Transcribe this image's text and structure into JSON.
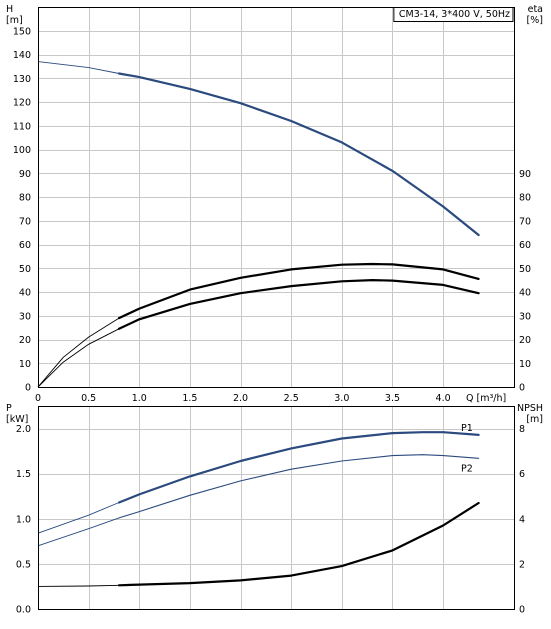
{
  "chart_data": [
    {
      "type": "line",
      "title": "CM3-14, 3*400 V, 50Hz",
      "xlabel": "Q [m³/h]",
      "ylabel_left": [
        "H",
        "[m]"
      ],
      "ylabel_right": [
        "eta",
        "[%]"
      ],
      "xlim": [
        0,
        4.7
      ],
      "ylim_left": [
        0,
        160
      ],
      "ylim_right": [
        0,
        160
      ],
      "grid": true,
      "x_ticks": [
        "0",
        "0.5",
        "1.0",
        "1.5",
        "2.0",
        "2.5",
        "3.0",
        "3.5",
        "4.0"
      ],
      "x_tick_values": [
        0,
        0.5,
        1,
        1.5,
        2,
        2.5,
        3,
        3.5,
        4
      ],
      "y_ticks_left": [
        "0",
        "10",
        "20",
        "30",
        "40",
        "50",
        "60",
        "70",
        "80",
        "90",
        "100",
        "110",
        "120",
        "130",
        "140",
        "150"
      ],
      "y_tick_values_left": [
        0,
        10,
        20,
        30,
        40,
        50,
        60,
        70,
        80,
        90,
        100,
        110,
        120,
        130,
        140,
        150
      ],
      "y_ticks_right": [
        "0",
        "10",
        "20",
        "30",
        "40",
        "50",
        "60",
        "70",
        "80",
        "90"
      ],
      "y_tick_values_right": [
        0,
        10,
        20,
        30,
        40,
        50,
        60,
        70,
        80,
        90
      ],
      "series": [
        {
          "axis": "left",
          "color": "#2b4a7e",
          "x": [
            0,
            0.5,
            0.8,
            1.0,
            1.5,
            2.0,
            2.5,
            3.0,
            3.5,
            4.0,
            4.35
          ],
          "y": [
            137,
            134.5,
            132,
            130.5,
            125.5,
            119.5,
            112,
            103,
            91,
            76,
            64
          ],
          "bold_from": 0.8
        },
        {
          "axis": "right",
          "color": "#000000",
          "x": [
            0,
            0.25,
            0.5,
            0.8,
            1.0,
            1.5,
            2.0,
            2.5,
            3.0,
            3.3,
            3.5,
            4.0,
            4.35
          ],
          "y": [
            0,
            12.5,
            21,
            29,
            33,
            41,
            46,
            49.5,
            51.5,
            51.8,
            51.6,
            49.5,
            45.5
          ],
          "bold_from": 0.8
        },
        {
          "axis": "right",
          "color": "#000000",
          "x": [
            0,
            0.25,
            0.5,
            0.8,
            1.0,
            1.5,
            2.0,
            2.5,
            3.0,
            3.3,
            3.5,
            4.0,
            4.35
          ],
          "y": [
            0,
            10.5,
            18,
            24.5,
            28.5,
            35,
            39.5,
            42.5,
            44.5,
            45,
            44.8,
            43,
            39.5
          ],
          "bold_from": 0.8
        }
      ]
    },
    {
      "type": "line",
      "xlim": [
        0,
        4.7
      ],
      "ylabel_left": [
        "P",
        "[kW]"
      ],
      "ylabel_right": [
        "NPSH",
        "[m]"
      ],
      "ylim_left": [
        0,
        2.25
      ],
      "ylim_right": [
        0,
        9
      ],
      "grid": true,
      "x_tick_values": [
        0,
        0.5,
        1,
        1.5,
        2,
        2.5,
        3,
        3.5,
        4
      ],
      "y_ticks_left": [
        "0.0",
        "0.5",
        "1.0",
        "1.5",
        "2.0"
      ],
      "y_tick_values_left": [
        0,
        0.5,
        1,
        1.5,
        2
      ],
      "y_ticks_right": [
        "0",
        "2",
        "4",
        "6",
        "8"
      ],
      "y_tick_values_right": [
        0,
        2,
        4,
        6,
        8
      ],
      "series": [
        {
          "name": "P1",
          "axis": "left",
          "color": "#2b4a7e",
          "x": [
            0,
            0.5,
            0.8,
            1.0,
            1.5,
            2.0,
            2.5,
            3.0,
            3.5,
            3.8,
            4.0,
            4.35
          ],
          "y": [
            0.84,
            1.04,
            1.18,
            1.27,
            1.47,
            1.64,
            1.78,
            1.89,
            1.95,
            1.96,
            1.96,
            1.93
          ],
          "bold_from": 0.8
        },
        {
          "name": "P2",
          "axis": "left",
          "color": "#2b4a7e",
          "x": [
            0,
            0.5,
            0.8,
            1.0,
            1.5,
            2.0,
            2.5,
            3.0,
            3.5,
            3.8,
            4.0,
            4.35
          ],
          "y": [
            0.7,
            0.89,
            1.01,
            1.08,
            1.26,
            1.42,
            1.55,
            1.64,
            1.7,
            1.71,
            1.7,
            1.67
          ],
          "bold_from": 0.8
        },
        {
          "axis": "right",
          "color": "#000000",
          "x": [
            0,
            0.5,
            0.8,
            1.0,
            1.5,
            2.0,
            2.5,
            3.0,
            3.5,
            4.0,
            4.35
          ],
          "y": [
            1,
            1.02,
            1.05,
            1.08,
            1.15,
            1.27,
            1.48,
            1.9,
            2.6,
            3.7,
            4.7
          ],
          "bold_from": 0.8
        }
      ]
    }
  ]
}
